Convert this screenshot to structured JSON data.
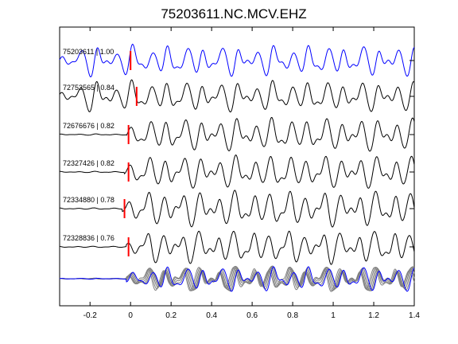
{
  "chart_data": {
    "type": "line",
    "title": "75203611.NC.MCV.EHZ",
    "xlabel": "",
    "ylabel": "",
    "xlim": [
      -0.35,
      1.4
    ],
    "xticks": [
      -0.2,
      0,
      0.2,
      0.4,
      0.6,
      0.8,
      1,
      1.2,
      1.4
    ],
    "xtick_labels": [
      "-0.2",
      "0",
      "0.2",
      "0.4",
      "0.6",
      "0.8",
      "1",
      "1.2",
      "1.4"
    ],
    "grid": false,
    "colors": {
      "reference": "#0000ff",
      "trace": "#000000",
      "overlay": "#808080",
      "pick": "#ff0000"
    },
    "series": [
      {
        "name": "75203611 | 1.00",
        "id": "75203611",
        "cc": 1.0,
        "pick_time": 0.0,
        "onset": -0.35,
        "color": "#0000ff",
        "seed": 1
      },
      {
        "name": "72753565 | 0.84",
        "id": "72753565",
        "cc": 0.84,
        "pick_time": 0.03,
        "onset": -0.35,
        "color": "#000000",
        "seed": 2
      },
      {
        "name": "72676676 | 0.82",
        "id": "72676676",
        "cc": 0.82,
        "pick_time": -0.01,
        "onset": -0.02,
        "color": "#000000",
        "seed": 3
      },
      {
        "name": "72327426 | 0.82",
        "id": "72327426",
        "cc": 0.82,
        "pick_time": -0.01,
        "onset": -0.03,
        "color": "#000000",
        "seed": 4
      },
      {
        "name": "72334880 | 0.78",
        "id": "72334880",
        "cc": 0.78,
        "pick_time": -0.03,
        "onset": -0.04,
        "color": "#000000",
        "seed": 5
      },
      {
        "name": "72328836 | 0.76",
        "id": "72328836",
        "cc": 0.76,
        "pick_time": -0.01,
        "onset": -0.02,
        "color": "#000000",
        "seed": 6
      }
    ],
    "stack": {
      "type": "overlay",
      "traces": "all",
      "highlight": "75203611"
    }
  }
}
